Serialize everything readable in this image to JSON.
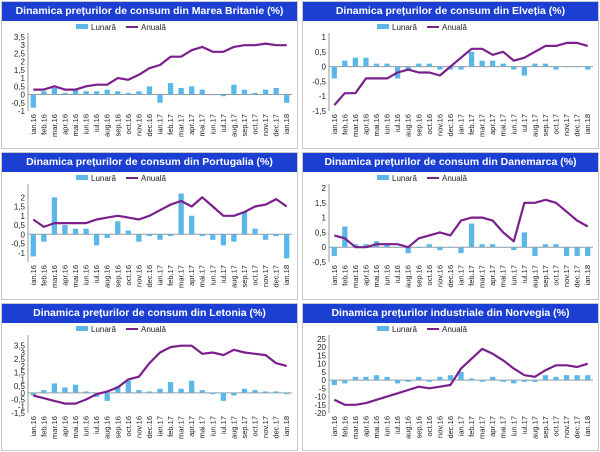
{
  "colors": {
    "monthly": "#5bb7e8",
    "annual": "#7a1f8c",
    "header_bg": "#1c3fd3",
    "header_text": "#ffffff"
  },
  "chart_data": [
    {
      "type": "bar+line",
      "title": "Dinamica prețurilor de consum din Marea Britanie (%)",
      "legend": [
        "Lunară",
        "Anuală"
      ],
      "ylim": [
        -1,
        3.5
      ],
      "yticks": [
        -1,
        -0.5,
        0,
        0.5,
        1,
        1.5,
        2,
        2.5,
        3,
        3.5
      ],
      "ytick_labels": [
        "-1",
        "-0,5",
        "0",
        "0,5",
        "1",
        "1,5",
        "2",
        "2,5",
        "3",
        "3,5"
      ],
      "xtick_labels": [
        "ian.16",
        "feb.16",
        "mar.16",
        "apr.16",
        "mai.16",
        "iun.16",
        "iul.16",
        "aug.16",
        "sep.16",
        "oct.16",
        "nov.16",
        "dec.16",
        "ian.17",
        "feb.17",
        "mar.17",
        "apr.17",
        "mai.17",
        "iun.17",
        "iul.17",
        "aug.17",
        "sep.17",
        "oct.17",
        "nov.17",
        "dec.17",
        "ian.18"
      ],
      "series": [
        {
          "name": "Lunară",
          "kind": "bar",
          "values": [
            -0.8,
            0.2,
            0.4,
            0.1,
            0.3,
            0.2,
            0.2,
            0.3,
            0.2,
            0.1,
            0.2,
            0.5,
            -0.5,
            0.7,
            0.4,
            0.5,
            0.3,
            0.0,
            -0.1,
            0.6,
            0.3,
            0.1,
            0.3,
            0.4,
            -0.5
          ]
        },
        {
          "name": "Anuală",
          "kind": "line",
          "values": [
            0.3,
            0.3,
            0.5,
            0.3,
            0.3,
            0.5,
            0.6,
            0.6,
            1.0,
            0.9,
            1.2,
            1.6,
            1.8,
            2.3,
            2.3,
            2.7,
            2.9,
            2.6,
            2.6,
            2.9,
            3.0,
            3.0,
            3.1,
            3.0,
            3.0
          ]
        }
      ]
    },
    {
      "type": "bar+line",
      "title": "Dinamica prețurilor de consum din Elveția (%)",
      "legend": [
        "Lunară",
        "Anuală"
      ],
      "ylim": [
        -1.5,
        1
      ],
      "yticks": [
        -1.5,
        -1,
        -0.5,
        0,
        0.5,
        1
      ],
      "ytick_labels": [
        "-1,5",
        "-1",
        "-0,5",
        "0",
        "0,5",
        "1"
      ],
      "xtick_labels": [
        "ian.16",
        "feb.16",
        "mar.16",
        "apr.16",
        "mai.16",
        "iun.16",
        "iul.16",
        "aug.16",
        "sep.16",
        "oct.16",
        "nov.16",
        "dec.16",
        "ian.17",
        "feb.17",
        "mar.17",
        "apr.17",
        "mai.17",
        "iun.17",
        "iul.17",
        "aug.17",
        "sep.17",
        "oct.17",
        "nov.17",
        "dec.17",
        "ian.18"
      ],
      "series": [
        {
          "name": "Lunară",
          "kind": "bar",
          "values": [
            -0.4,
            0.2,
            0.3,
            0.3,
            0.1,
            0.1,
            -0.4,
            -0.1,
            0.1,
            0.1,
            -0.1,
            -0.1,
            -0.1,
            0.5,
            0.2,
            0.2,
            0.1,
            -0.1,
            -0.3,
            0.1,
            0.1,
            -0.1,
            0.0,
            0.0,
            -0.1
          ]
        },
        {
          "name": "Anuală",
          "kind": "line",
          "values": [
            -1.3,
            -0.9,
            -0.9,
            -0.4,
            -0.4,
            -0.4,
            -0.2,
            -0.1,
            -0.2,
            -0.2,
            -0.3,
            0.0,
            0.3,
            0.6,
            0.6,
            0.4,
            0.5,
            0.2,
            0.3,
            0.5,
            0.7,
            0.7,
            0.8,
            0.8,
            0.7
          ]
        }
      ]
    },
    {
      "type": "bar+line",
      "title": "Dinamica prețurilor de consum din Portugalia (%)",
      "legend": [
        "Lunară",
        "Anuală"
      ],
      "ylim": [
        -1.5,
        2.5
      ],
      "yticks": [
        -1,
        -0.5,
        0,
        0.5,
        1,
        1.5,
        2
      ],
      "ytick_labels": [
        "-1",
        "-0,5",
        "0",
        "0,5",
        "1",
        "1,5",
        "2"
      ],
      "xtick_labels": [
        "ian.16",
        "feb.16",
        "mar.16",
        "apr.16",
        "mai.16",
        "iun.16",
        "iul.16",
        "aug.16",
        "sep.16",
        "oct.16",
        "nov.16",
        "dec.16",
        "ian.17",
        "feb.17",
        "mar.17",
        "apr.17",
        "mai.17",
        "iun.17",
        "iul.17",
        "aug.17",
        "sep.17",
        "oct.17",
        "nov.17",
        "dec.17",
        "ian.18"
      ],
      "series": [
        {
          "name": "Lunară",
          "kind": "bar",
          "values": [
            -1.2,
            -0.4,
            2.0,
            0.5,
            0.3,
            0.3,
            -0.6,
            -0.2,
            0.7,
            0.2,
            -0.4,
            -0.1,
            -0.3,
            -0.1,
            2.2,
            1.0,
            -0.1,
            -0.3,
            -0.6,
            -0.4,
            1.2,
            0.3,
            -0.3,
            -0.1,
            -1.3
          ]
        },
        {
          "name": "Anuală",
          "kind": "line",
          "values": [
            0.8,
            0.4,
            0.6,
            0.6,
            0.6,
            0.6,
            0.8,
            0.9,
            1.0,
            0.9,
            0.8,
            1.0,
            1.3,
            1.6,
            1.8,
            1.5,
            2.0,
            1.5,
            1.0,
            1.0,
            1.2,
            1.5,
            1.6,
            1.9,
            1.5
          ]
        }
      ]
    },
    {
      "type": "bar+line",
      "title": "Dinamica prețurilor de consum din Danemarca (%)",
      "legend": [
        "Lunară",
        "Anuală"
      ],
      "ylim": [
        -0.5,
        2
      ],
      "yticks": [
        -0.5,
        0,
        0.5,
        1,
        1.5,
        2
      ],
      "ytick_labels": [
        "-0,5",
        "0",
        "0,5",
        "1",
        "1,5",
        "2"
      ],
      "xtick_labels": [
        "ian.16",
        "feb.16",
        "mar.16",
        "apr.16",
        "mai.16",
        "iun.16",
        "iul.16",
        "aug.16",
        "sep.16",
        "oct.16",
        "nov.16",
        "dec.16",
        "ian.17",
        "feb.17",
        "mar.17",
        "apr.17",
        "mai.17",
        "iun.17",
        "iul.17",
        "aug.17",
        "sep.17",
        "oct.17",
        "nov.17",
        "dec.17",
        "ian.18"
      ],
      "series": [
        {
          "name": "Lunară",
          "kind": "bar",
          "values": [
            -0.3,
            0.7,
            0.1,
            0.1,
            0.2,
            0.1,
            0.0,
            -0.2,
            0.0,
            0.1,
            -0.1,
            0.0,
            -0.2,
            0.8,
            0.1,
            0.1,
            0.0,
            -0.1,
            0.5,
            -0.3,
            0.1,
            0.1,
            -0.3,
            -0.3,
            -0.3
          ]
        },
        {
          "name": "Anuală",
          "kind": "line",
          "values": [
            0.4,
            0.3,
            0.0,
            0.0,
            0.1,
            0.1,
            0.1,
            0.0,
            0.3,
            0.4,
            0.5,
            0.4,
            0.9,
            1.0,
            1.0,
            0.9,
            0.5,
            0.2,
            1.5,
            1.5,
            1.6,
            1.5,
            1.2,
            0.9,
            0.7
          ]
        }
      ]
    },
    {
      "type": "bar+line",
      "title": "Dinamica prețurilor de consum din Letonia (%)",
      "legend": [
        "Lunară",
        "Anuală"
      ],
      "ylim": [
        -1.5,
        4
      ],
      "yticks": [
        -1.5,
        -1,
        -0.5,
        0,
        0.5,
        1,
        1.5,
        2,
        2.5,
        3,
        3.5
      ],
      "ytick_labels": [
        "-1,5",
        "-1",
        "-0,5",
        "0",
        "0,5",
        "1",
        "1,5",
        "2",
        "2,5",
        "3",
        "3,5"
      ],
      "xtick_labels": [
        "ian.16",
        "feb.16",
        "mar.16",
        "apr.16",
        "mai.16",
        "iun.16",
        "iul.16",
        "aug.16",
        "sep.16",
        "oct.16",
        "nov.16",
        "dec.16",
        "ian.17",
        "feb.17",
        "mar.17",
        "apr.17",
        "mai.17",
        "iun.17",
        "iul.17",
        "aug.17",
        "sep.17",
        "oct.17",
        "nov.17",
        "dec.17",
        "ian.18"
      ],
      "series": [
        {
          "name": "Lunară",
          "kind": "bar",
          "values": [
            -0.2,
            0.2,
            0.7,
            0.4,
            0.6,
            0.1,
            -0.3,
            -0.6,
            0.5,
            0.9,
            0.2,
            0.1,
            0.3,
            0.8,
            0.3,
            0.9,
            0.2,
            -0.1,
            -0.6,
            -0.2,
            0.3,
            0.2,
            0.1,
            0.1,
            -0.1
          ]
        },
        {
          "name": "Anuală",
          "kind": "line",
          "values": [
            -0.2,
            -0.4,
            -0.6,
            -0.8,
            -0.8,
            -0.5,
            -0.1,
            0.1,
            0.4,
            1.0,
            1.2,
            2.2,
            3.0,
            3.4,
            3.5,
            3.5,
            2.9,
            3.0,
            2.8,
            3.2,
            3.0,
            2.9,
            2.8,
            2.2,
            2.0
          ]
        }
      ]
    },
    {
      "type": "bar+line",
      "title": "Dinamica prețurilor industriale din Norvegia (%)",
      "legend": [
        "Lunară",
        "Anuală"
      ],
      "ylim": [
        -20,
        25
      ],
      "yticks": [
        -20,
        -15,
        -10,
        -5,
        0,
        5,
        10,
        15,
        20,
        25
      ],
      "ytick_labels": [
        "-20",
        "-15",
        "-10",
        "-5",
        "0",
        "5",
        "10",
        "15",
        "20",
        "25"
      ],
      "xtick_labels": [
        "ian.16",
        "feb.16",
        "mar.16",
        "apr.16",
        "mai.16",
        "iun.16",
        "iul.16",
        "aug.16",
        "sep.16",
        "oct.16",
        "nov.16",
        "dec.16",
        "ian.17",
        "feb.17",
        "mar.17",
        "apr.17",
        "mai.17",
        "iun.17",
        "iul.17",
        "aug.17",
        "sep.17",
        "oct.17",
        "nov.17",
        "dec.17",
        "ian.18"
      ],
      "series": [
        {
          "name": "Lunară",
          "kind": "bar",
          "values": [
            -3,
            -2,
            2,
            2,
            3,
            2,
            -2,
            -1,
            2,
            -1,
            2,
            3,
            5,
            1,
            -1,
            2,
            -1,
            -2,
            -1,
            -1,
            3,
            2,
            3,
            3,
            3
          ]
        },
        {
          "name": "Anuală",
          "kind": "line",
          "values": [
            -12,
            -15,
            -15,
            -14,
            -12,
            -10,
            -8,
            -6,
            -4,
            -5,
            -4,
            -3,
            7,
            13,
            19,
            16,
            12,
            7,
            3,
            2,
            6,
            9,
            9,
            8,
            10
          ]
        }
      ]
    }
  ]
}
